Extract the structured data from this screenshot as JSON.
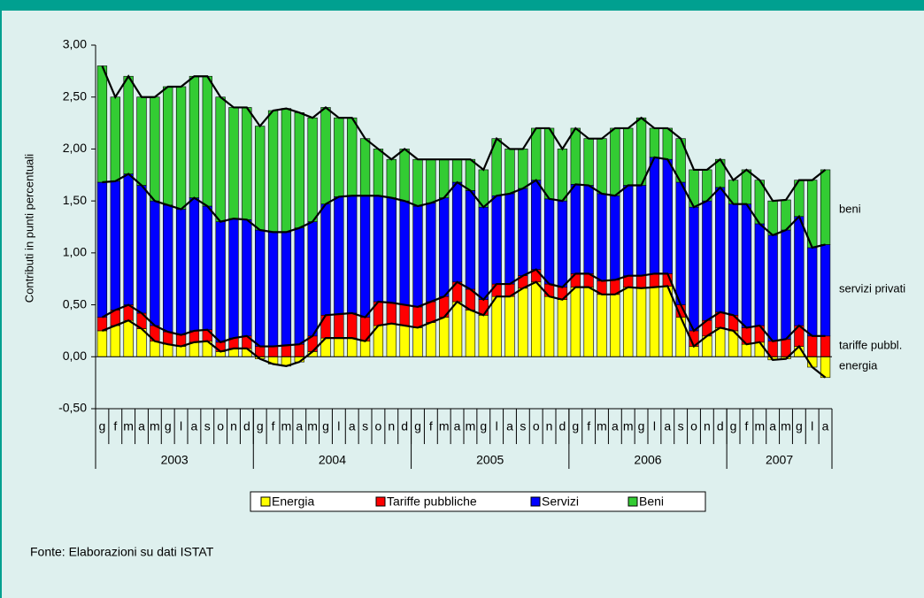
{
  "chart_data": {
    "type": "bar",
    "stacked": true,
    "y_label": "Contributi in punti percentuali",
    "categories": [
      "g",
      "f",
      "m",
      "a",
      "m",
      "g",
      "l",
      "a",
      "s",
      "o",
      "n",
      "d",
      "g",
      "f",
      "m",
      "a",
      "m",
      "g",
      "l",
      "a",
      "s",
      "o",
      "n",
      "d",
      "g",
      "f",
      "m",
      "a",
      "m",
      "g",
      "l",
      "a",
      "s",
      "o",
      "n",
      "d",
      "g",
      "f",
      "m",
      "a",
      "m",
      "g",
      "l",
      "a",
      "s",
      "o",
      "n",
      "d",
      "g",
      "f",
      "m",
      "a",
      "m",
      "g",
      "l",
      "a"
    ],
    "years": [
      "2003",
      "2004",
      "2005",
      "2006",
      "2007"
    ],
    "series": [
      {
        "name": "Energia",
        "color": "#ffff00",
        "values": [
          0.25,
          0.3,
          0.35,
          0.27,
          0.15,
          0.12,
          0.1,
          0.14,
          0.15,
          0.05,
          0.08,
          0.08,
          -0.02,
          -0.07,
          -0.09,
          -0.05,
          0.05,
          0.18,
          0.18,
          0.18,
          0.15,
          0.3,
          0.32,
          0.3,
          0.28,
          0.33,
          0.38,
          0.53,
          0.45,
          0.4,
          0.58,
          0.58,
          0.66,
          0.72,
          0.58,
          0.55,
          0.67,
          0.67,
          0.6,
          0.6,
          0.67,
          0.66,
          0.67,
          0.68,
          0.38,
          0.1,
          0.2,
          0.28,
          0.25,
          0.12,
          0.14,
          -0.03,
          -0.02,
          0.1,
          -0.1,
          -0.2
        ]
      },
      {
        "name": "Tariffe pubbliche",
        "color": "#ff0000",
        "values": [
          0.13,
          0.15,
          0.15,
          0.15,
          0.15,
          0.12,
          0.11,
          0.11,
          0.11,
          0.09,
          0.1,
          0.12,
          0.1,
          0.1,
          0.11,
          0.12,
          0.15,
          0.22,
          0.23,
          0.24,
          0.23,
          0.23,
          0.2,
          0.2,
          0.2,
          0.2,
          0.2,
          0.19,
          0.2,
          0.15,
          0.12,
          0.12,
          0.12,
          0.12,
          0.12,
          0.12,
          0.13,
          0.13,
          0.13,
          0.14,
          0.11,
          0.12,
          0.13,
          0.12,
          0.12,
          0.15,
          0.15,
          0.15,
          0.15,
          0.16,
          0.16,
          0.15,
          0.17,
          0.2,
          0.2,
          0.2
        ]
      },
      {
        "name": "Servizi",
        "color": "#0000ff",
        "values": [
          1.3,
          1.24,
          1.26,
          1.23,
          1.2,
          1.22,
          1.21,
          1.28,
          1.19,
          1.16,
          1.15,
          1.12,
          1.12,
          1.1,
          1.09,
          1.12,
          1.1,
          1.07,
          1.13,
          1.13,
          1.17,
          1.02,
          1.01,
          1.0,
          0.97,
          0.95,
          0.95,
          0.96,
          0.95,
          0.89,
          0.85,
          0.87,
          0.84,
          0.86,
          0.82,
          0.83,
          0.86,
          0.85,
          0.84,
          0.81,
          0.87,
          0.87,
          1.12,
          1.1,
          1.18,
          1.19,
          1.15,
          1.2,
          1.07,
          1.19,
          0.98,
          1.02,
          1.05,
          1.05,
          0.85,
          0.88
        ]
      },
      {
        "name": "Beni",
        "color": "#33cc33",
        "values": [
          1.12,
          0.81,
          0.94,
          0.85,
          1.0,
          1.14,
          1.18,
          1.17,
          1.25,
          1.2,
          1.07,
          1.08,
          1.0,
          1.17,
          1.19,
          1.11,
          1.0,
          0.93,
          0.76,
          0.75,
          0.55,
          0.45,
          0.37,
          0.5,
          0.45,
          0.42,
          0.37,
          0.22,
          0.3,
          0.36,
          0.55,
          0.43,
          0.38,
          0.5,
          0.68,
          0.5,
          0.54,
          0.45,
          0.53,
          0.65,
          0.55,
          0.65,
          0.28,
          0.3,
          0.42,
          0.36,
          0.3,
          0.27,
          0.23,
          0.33,
          0.42,
          0.33,
          0.29,
          0.35,
          0.65,
          0.72
        ]
      }
    ],
    "annotations": [
      "energia",
      "tariffe pubbl.",
      "servizi privati",
      "beni"
    ],
    "ylim": [
      -0.5,
      3.0
    ],
    "yticks": [
      {
        "value": -0.5,
        "label": "-0,50"
      },
      {
        "value": 0,
        "label": "0,00"
      },
      {
        "value": 0.5,
        "label": "0,50"
      },
      {
        "value": 1.0,
        "label": "1,00"
      },
      {
        "value": 1.5,
        "label": "1,50"
      },
      {
        "value": 2.0,
        "label": "2,00"
      },
      {
        "value": 2.5,
        "label": "2,50"
      },
      {
        "value": 3.0,
        "label": "3,00"
      }
    ],
    "source": "Fonte: Elaborazioni su dati ISTAT"
  }
}
